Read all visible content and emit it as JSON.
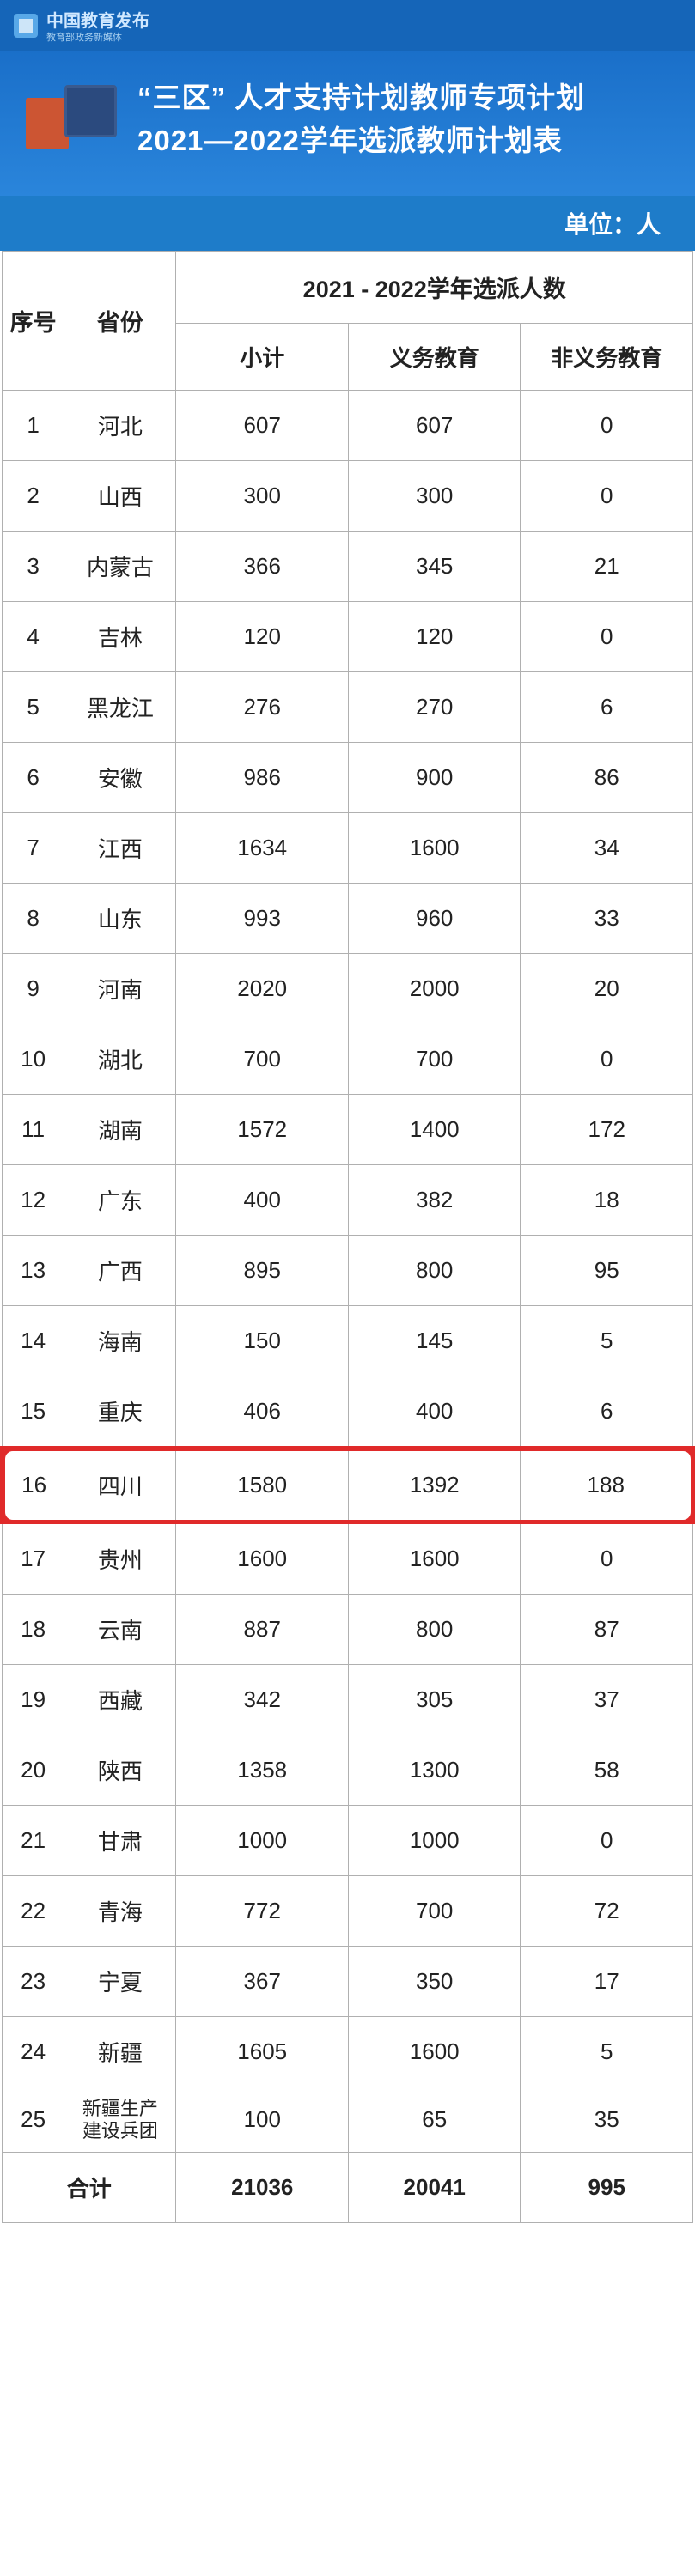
{
  "logo": {
    "brand": "中国教育发布",
    "sub": "教育部政务新媒体"
  },
  "title": {
    "line1": "“三区” 人才支持计划教师专项计划",
    "line2": "2021—2022学年选派教师计划表"
  },
  "unit_label": "单位：人",
  "headers": {
    "seq": "序号",
    "province": "省份",
    "group": "2021 - 2022学年选派人数",
    "subtotal": "小计",
    "compulsory": "义务教育",
    "noncompulsory": "非义务教育",
    "total": "合计"
  },
  "highlight_index": 15,
  "highlight_color": "#e02a2a",
  "rows": [
    {
      "seq": "1",
      "prov": "河北",
      "sub": "607",
      "a": "607",
      "b": "0"
    },
    {
      "seq": "2",
      "prov": "山西",
      "sub": "300",
      "a": "300",
      "b": "0"
    },
    {
      "seq": "3",
      "prov": "内蒙古",
      "sub": "366",
      "a": "345",
      "b": "21"
    },
    {
      "seq": "4",
      "prov": "吉林",
      "sub": "120",
      "a": "120",
      "b": "0"
    },
    {
      "seq": "5",
      "prov": "黑龙江",
      "sub": "276",
      "a": "270",
      "b": "6"
    },
    {
      "seq": "6",
      "prov": "安徽",
      "sub": "986",
      "a": "900",
      "b": "86"
    },
    {
      "seq": "7",
      "prov": "江西",
      "sub": "1634",
      "a": "1600",
      "b": "34"
    },
    {
      "seq": "8",
      "prov": "山东",
      "sub": "993",
      "a": "960",
      "b": "33"
    },
    {
      "seq": "9",
      "prov": "河南",
      "sub": "2020",
      "a": "2000",
      "b": "20"
    },
    {
      "seq": "10",
      "prov": "湖北",
      "sub": "700",
      "a": "700",
      "b": "0"
    },
    {
      "seq": "11",
      "prov": "湖南",
      "sub": "1572",
      "a": "1400",
      "b": "172"
    },
    {
      "seq": "12",
      "prov": "广东",
      "sub": "400",
      "a": "382",
      "b": "18"
    },
    {
      "seq": "13",
      "prov": "广西",
      "sub": "895",
      "a": "800",
      "b": "95"
    },
    {
      "seq": "14",
      "prov": "海南",
      "sub": "150",
      "a": "145",
      "b": "5"
    },
    {
      "seq": "15",
      "prov": "重庆",
      "sub": "406",
      "a": "400",
      "b": "6"
    },
    {
      "seq": "16",
      "prov": "四川",
      "sub": "1580",
      "a": "1392",
      "b": "188"
    },
    {
      "seq": "17",
      "prov": "贵州",
      "sub": "1600",
      "a": "1600",
      "b": "0"
    },
    {
      "seq": "18",
      "prov": "云南",
      "sub": "887",
      "a": "800",
      "b": "87"
    },
    {
      "seq": "19",
      "prov": "西藏",
      "sub": "342",
      "a": "305",
      "b": "37"
    },
    {
      "seq": "20",
      "prov": "陕西",
      "sub": "1358",
      "a": "1300",
      "b": "58"
    },
    {
      "seq": "21",
      "prov": "甘肃",
      "sub": "1000",
      "a": "1000",
      "b": "0"
    },
    {
      "seq": "22",
      "prov": "青海",
      "sub": "772",
      "a": "700",
      "b": "72"
    },
    {
      "seq": "23",
      "prov": "宁夏",
      "sub": "367",
      "a": "350",
      "b": "17"
    },
    {
      "seq": "24",
      "prov": "新疆",
      "sub": "1605",
      "a": "1600",
      "b": "5"
    },
    {
      "seq": "25",
      "prov": "新疆生产\n建设兵团",
      "sub": "100",
      "a": "65",
      "b": "35",
      "small": true
    }
  ],
  "total": {
    "sub": "21036",
    "a": "20041",
    "b": "995"
  },
  "colors": {
    "header_bg": "#1a6fc9",
    "unit_bg": "#1e7cc9",
    "border": "#b0b0b0",
    "text": "#222222",
    "white": "#ffffff"
  }
}
